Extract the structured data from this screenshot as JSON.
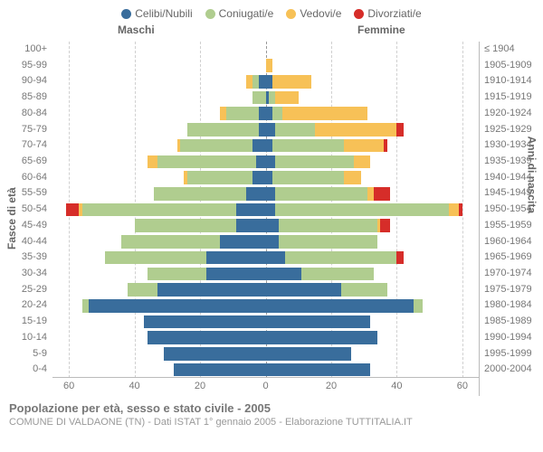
{
  "legend": [
    {
      "label": "Celibi/Nubili",
      "color": "#396d9c"
    },
    {
      "label": "Coniugati/e",
      "color": "#b0cd8f"
    },
    {
      "label": "Vedovi/e",
      "color": "#f7c157"
    },
    {
      "label": "Divorziati/e",
      "color": "#d62d29"
    }
  ],
  "headers": {
    "male": "Maschi",
    "female": "Femmine"
  },
  "y_left_title": "Fasce di età",
  "y_right_title": "Anni di nascita",
  "footer_title": "Popolazione per età, sesso e stato civile - 2005",
  "footer_sub": "COMUNE DI VALDAONE (TN) - Dati ISTAT 1° gennaio 2005 - Elaborazione TUTTITALIA.IT",
  "axis": {
    "max": 65,
    "ticks_male": [
      60,
      40,
      20,
      0
    ],
    "ticks_female": [
      20,
      40,
      60
    ]
  },
  "colors": {
    "celibi": "#396d9c",
    "coniugati": "#b0cd8f",
    "vedovi": "#f7c157",
    "divorziati": "#d62d29",
    "grid": "#d0d0d0",
    "center": "#999999",
    "bg": "#ffffff"
  },
  "rows": [
    {
      "age": "100+",
      "birth": "≤ 1904",
      "m": [
        0,
        0,
        0,
        0
      ],
      "f": [
        0,
        0,
        0,
        0
      ]
    },
    {
      "age": "95-99",
      "birth": "1905-1909",
      "m": [
        0,
        0,
        0,
        0
      ],
      "f": [
        0,
        0,
        2,
        0
      ]
    },
    {
      "age": "90-94",
      "birth": "1910-1914",
      "m": [
        2,
        2,
        2,
        0
      ],
      "f": [
        2,
        0,
        12,
        0
      ]
    },
    {
      "age": "85-89",
      "birth": "1915-1919",
      "m": [
        0,
        4,
        0,
        0
      ],
      "f": [
        1,
        2,
        7,
        0
      ]
    },
    {
      "age": "80-84",
      "birth": "1920-1924",
      "m": [
        2,
        10,
        2,
        0
      ],
      "f": [
        2,
        3,
        26,
        0
      ]
    },
    {
      "age": "75-79",
      "birth": "1925-1929",
      "m": [
        2,
        22,
        0,
        0
      ],
      "f": [
        3,
        12,
        25,
        2
      ]
    },
    {
      "age": "70-74",
      "birth": "1930-1934",
      "m": [
        4,
        22,
        1,
        0
      ],
      "f": [
        2,
        22,
        12,
        1
      ]
    },
    {
      "age": "65-69",
      "birth": "1935-1939",
      "m": [
        3,
        30,
        3,
        0
      ],
      "f": [
        3,
        24,
        5,
        0
      ]
    },
    {
      "age": "60-64",
      "birth": "1940-1944",
      "m": [
        4,
        20,
        1,
        0
      ],
      "f": [
        2,
        22,
        5,
        0
      ]
    },
    {
      "age": "55-59",
      "birth": "1945-1949",
      "m": [
        6,
        28,
        0,
        0
      ],
      "f": [
        3,
        28,
        2,
        5
      ]
    },
    {
      "age": "50-54",
      "birth": "1950-1954",
      "m": [
        9,
        47,
        1,
        4
      ],
      "f": [
        3,
        53,
        3,
        1
      ]
    },
    {
      "age": "45-49",
      "birth": "1955-1959",
      "m": [
        9,
        31,
        0,
        0
      ],
      "f": [
        4,
        30,
        1,
        3
      ]
    },
    {
      "age": "40-44",
      "birth": "1960-1964",
      "m": [
        14,
        30,
        0,
        0
      ],
      "f": [
        4,
        30,
        0,
        0
      ]
    },
    {
      "age": "35-39",
      "birth": "1965-1969",
      "m": [
        18,
        31,
        0,
        0
      ],
      "f": [
        6,
        34,
        0,
        2
      ]
    },
    {
      "age": "30-34",
      "birth": "1970-1974",
      "m": [
        18,
        18,
        0,
        0
      ],
      "f": [
        11,
        22,
        0,
        0
      ]
    },
    {
      "age": "25-29",
      "birth": "1975-1979",
      "m": [
        33,
        9,
        0,
        0
      ],
      "f": [
        23,
        14,
        0,
        0
      ]
    },
    {
      "age": "20-24",
      "birth": "1980-1984",
      "m": [
        54,
        2,
        0,
        0
      ],
      "f": [
        45,
        3,
        0,
        0
      ]
    },
    {
      "age": "15-19",
      "birth": "1985-1989",
      "m": [
        37,
        0,
        0,
        0
      ],
      "f": [
        32,
        0,
        0,
        0
      ]
    },
    {
      "age": "10-14",
      "birth": "1990-1994",
      "m": [
        36,
        0,
        0,
        0
      ],
      "f": [
        34,
        0,
        0,
        0
      ]
    },
    {
      "age": "5-9",
      "birth": "1995-1999",
      "m": [
        31,
        0,
        0,
        0
      ],
      "f": [
        26,
        0,
        0,
        0
      ]
    },
    {
      "age": "0-4",
      "birth": "2000-2004",
      "m": [
        28,
        0,
        0,
        0
      ],
      "f": [
        32,
        0,
        0,
        0
      ]
    }
  ]
}
